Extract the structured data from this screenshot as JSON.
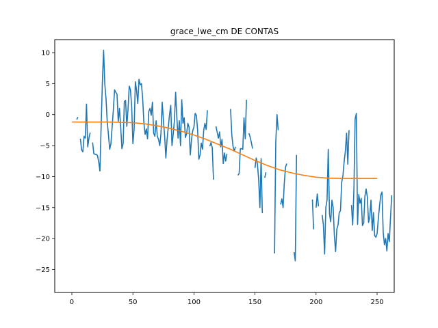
{
  "chart_data": {
    "type": "line",
    "title": "grace_lwe_cm DE CONTAS",
    "xlabel": "",
    "ylabel": "",
    "xlim": [
      -14,
      264
    ],
    "ylim": [
      -28.7,
      12.1
    ],
    "x_ticks": [
      0,
      50,
      100,
      150,
      200,
      250
    ],
    "y_ticks": [
      10,
      5,
      0,
      -5,
      -10,
      -15,
      -20,
      -25
    ],
    "grid": false,
    "legend": "none",
    "series": [
      {
        "color": "#1f77b4",
        "values": [
          [
            4,
            -0.8
          ],
          [
            5,
            -0.4
          ],
          null,
          [
            7,
            -3.9
          ],
          [
            8,
            -5.7
          ],
          [
            9,
            -6.0
          ],
          [
            10,
            -3.5
          ],
          [
            11,
            -3.8
          ],
          [
            12,
            1.7
          ],
          [
            13,
            -5.2
          ],
          [
            14,
            -3.8
          ],
          [
            15,
            -2.9
          ],
          null,
          [
            17,
            -4.5
          ],
          [
            18,
            -6.3
          ],
          [
            19,
            -6.4
          ],
          [
            20,
            -6.4
          ],
          [
            21,
            -6.6
          ],
          [
            22,
            -7.6
          ],
          [
            23,
            -9.1
          ],
          [
            24,
            -1.8
          ],
          [
            25,
            5.2
          ],
          [
            26,
            10.4
          ],
          [
            27,
            4.9
          ],
          [
            28,
            2.5
          ],
          [
            29,
            -1.2
          ],
          [
            30,
            -3.3
          ],
          [
            31,
            -5.6
          ],
          [
            32,
            -4.7
          ],
          [
            33,
            -2.0
          ],
          [
            34,
            0.8
          ],
          [
            35,
            4.0
          ],
          [
            36,
            3.6
          ],
          [
            37,
            3.3
          ],
          [
            38,
            -1.1
          ],
          [
            39,
            1.0
          ],
          [
            40,
            -2.0
          ],
          [
            41,
            -5.5
          ],
          [
            42,
            -4.7
          ],
          [
            43,
            2.1
          ],
          [
            44,
            2.3
          ],
          [
            45,
            -1.9
          ],
          [
            46,
            0.8
          ],
          [
            47,
            4.6
          ],
          [
            48,
            4.0
          ],
          [
            49,
            1.3
          ],
          [
            50,
            -4.7
          ],
          [
            51,
            -2.4
          ],
          [
            52,
            5.3
          ],
          [
            53,
            3.9
          ],
          [
            54,
            1.8
          ],
          [
            55,
            5.7
          ],
          [
            56,
            4.8
          ],
          [
            57,
            5.0
          ],
          [
            58,
            2.6
          ],
          [
            59,
            -1.3
          ],
          [
            60,
            -3.2
          ],
          [
            61,
            -2.3
          ],
          [
            62,
            -3.9
          ],
          [
            63,
            0.5
          ],
          [
            64,
            1.0
          ],
          [
            65,
            -0.1
          ],
          [
            66,
            2.0
          ],
          [
            67,
            -3.0
          ],
          [
            68,
            -3.5
          ],
          [
            69,
            -1.0
          ],
          [
            70,
            -3.5
          ],
          [
            71,
            -4.0
          ],
          [
            72,
            -5.0
          ],
          [
            73,
            -3.0
          ],
          [
            74,
            2.0
          ],
          [
            75,
            -1.0
          ],
          [
            76,
            -3.5
          ],
          [
            77,
            -7.0
          ],
          [
            78,
            -4.0
          ],
          [
            79,
            -2.0
          ],
          [
            80,
            0.0
          ],
          [
            81,
            1.5
          ],
          [
            82,
            -5.0
          ],
          [
            83,
            -3.2
          ],
          [
            84,
            -1.0
          ],
          [
            85,
            3.6
          ],
          [
            86,
            -0.5
          ],
          [
            87,
            -3.8
          ],
          [
            88,
            -1.0
          ],
          [
            89,
            -5.0
          ],
          [
            90,
            2.4
          ],
          [
            91,
            -1.4
          ],
          [
            92,
            -0.5
          ],
          [
            93,
            -3.7
          ],
          [
            94,
            -3.1
          ],
          [
            95,
            -1.4
          ],
          [
            96,
            -2.0
          ],
          [
            97,
            -6.5
          ],
          [
            98,
            -4.0
          ],
          [
            99,
            -2.6
          ],
          [
            100,
            -2.0
          ],
          [
            101,
            0.2
          ],
          [
            102,
            -0.1
          ],
          [
            103,
            -2.5
          ],
          [
            104,
            -7.2
          ],
          [
            105,
            -6.5
          ],
          [
            106,
            -4.6
          ],
          [
            107,
            -5.6
          ],
          [
            108,
            -2.5
          ],
          [
            109,
            -1.4
          ],
          [
            110,
            -2.4
          ],
          [
            111,
            0.7
          ],
          null,
          [
            113,
            -5.1
          ],
          [
            114,
            -4.5
          ],
          [
            115,
            -5.4
          ],
          [
            116,
            -10.5
          ],
          null,
          [
            118,
            -1.9
          ],
          [
            119,
            -2.8
          ],
          [
            120,
            -3.8
          ],
          [
            121,
            -2.8
          ],
          [
            122,
            -5.2
          ],
          [
            123,
            -4.0
          ],
          [
            124,
            -7.9
          ],
          [
            125,
            -6.2
          ],
          [
            126,
            -7.5
          ],
          [
            127,
            -6.3
          ],
          null,
          [
            130,
            0.9
          ],
          [
            131,
            -3.3
          ],
          [
            132,
            -5.1
          ],
          [
            133,
            -5.9
          ],
          [
            134,
            -5.2
          ],
          null,
          [
            136,
            -9.8
          ],
          [
            137,
            -9.5
          ],
          [
            138,
            -5.5
          ],
          [
            139,
            -5.5
          ],
          [
            140,
            -5.6
          ],
          [
            141,
            -0.5
          ],
          [
            142,
            -3.9
          ],
          [
            143,
            2.4
          ],
          null,
          [
            145,
            -3.0
          ],
          [
            146,
            -3.6
          ],
          [
            147,
            -4.5
          ],
          [
            148,
            -5.5
          ],
          null,
          [
            150,
            -8.6
          ],
          [
            151,
            -7.0
          ],
          [
            152,
            -8.0
          ],
          [
            153,
            -10.5
          ],
          [
            154,
            -15.0
          ],
          [
            155,
            -7.1
          ],
          [
            156,
            -15.9
          ],
          null,
          [
            158,
            -10.2
          ],
          [
            159,
            -9.3
          ],
          null,
          [
            166,
            -22.4
          ],
          [
            167,
            -4.5
          ],
          [
            168,
            0.0
          ],
          [
            169,
            -2.5
          ],
          null,
          [
            171,
            -14.5
          ],
          [
            172,
            -13.6
          ],
          [
            173,
            -15.0
          ],
          [
            174,
            -11.0
          ],
          [
            175,
            -8.5
          ],
          [
            176,
            -7.9
          ],
          null,
          [
            182,
            -22.2
          ],
          [
            183,
            -23.6
          ],
          [
            184,
            -6.5
          ],
          null,
          [
            197,
            -13.7
          ],
          [
            198,
            -18.5
          ],
          null,
          [
            200,
            -15.0
          ],
          [
            201,
            -12.8
          ],
          [
            202,
            -14.8
          ],
          null,
          [
            205,
            -16.2
          ],
          [
            206,
            -17.8
          ],
          [
            207,
            -22.5
          ],
          [
            208,
            -15.0
          ],
          [
            209,
            -13.8
          ],
          [
            210,
            -5.6
          ],
          [
            211,
            -16.0
          ],
          [
            212,
            -17.3
          ],
          [
            213,
            -13.8
          ],
          [
            214,
            -15.0
          ],
          [
            215,
            -19.5
          ],
          [
            216,
            -22.1
          ],
          [
            217,
            -18.5
          ],
          [
            218,
            -17.8
          ],
          [
            219,
            -15.8
          ],
          [
            220,
            -15.5
          ],
          [
            221,
            -10.9
          ],
          [
            222,
            -9.9
          ],
          [
            223,
            -7.6
          ],
          [
            224,
            -5.9
          ],
          [
            225,
            -3.0
          ],
          [
            226,
            -8.0
          ],
          [
            227,
            -2.5
          ],
          null,
          [
            229,
            -14.6
          ],
          [
            230,
            -17.8
          ],
          [
            231,
            -12.1
          ],
          [
            232,
            -0.7
          ],
          [
            233,
            0.2
          ],
          [
            234,
            -17.7
          ],
          [
            235,
            -12.9
          ],
          [
            236,
            -14.3
          ],
          [
            237,
            -13.5
          ],
          [
            238,
            -17.9
          ],
          [
            239,
            -17.5
          ],
          [
            240,
            -13.2
          ],
          [
            241,
            -12.0
          ],
          [
            242,
            -13.3
          ],
          [
            243,
            -17.4
          ],
          [
            244,
            -16.5
          ],
          [
            245,
            -13.8
          ],
          [
            246,
            -18.7
          ],
          [
            247,
            -15.8
          ],
          [
            248,
            -19.5
          ],
          [
            249,
            -19.8
          ],
          [
            250,
            -19.2
          ],
          [
            251,
            -16.8
          ],
          [
            252,
            -14.7
          ],
          [
            253,
            -13.0
          ],
          [
            254,
            -12.5
          ],
          [
            255,
            -19.0
          ],
          [
            256,
            -21.0
          ],
          [
            257,
            -20.0
          ],
          [
            258,
            -22.0
          ],
          [
            259,
            -19.2
          ],
          [
            260,
            -20.5
          ],
          [
            261,
            -16.5
          ],
          [
            262,
            -13.0
          ]
        ]
      },
      {
        "color": "#ff7f0e",
        "values": [
          [
            0,
            -1.2
          ],
          [
            10,
            -1.2
          ],
          [
            20,
            -1.2
          ],
          [
            30,
            -1.2
          ],
          [
            40,
            -1.25
          ],
          [
            50,
            -1.3
          ],
          [
            60,
            -1.5
          ],
          [
            70,
            -1.8
          ],
          [
            80,
            -2.2
          ],
          [
            90,
            -2.7
          ],
          [
            100,
            -3.3
          ],
          [
            110,
            -4.0
          ],
          [
            120,
            -4.8
          ],
          [
            130,
            -5.6
          ],
          [
            140,
            -6.5
          ],
          [
            150,
            -7.4
          ],
          [
            160,
            -8.2
          ],
          [
            170,
            -8.9
          ],
          [
            180,
            -9.4
          ],
          [
            190,
            -9.8
          ],
          [
            200,
            -10.1
          ],
          [
            210,
            -10.25
          ],
          [
            220,
            -10.3
          ],
          [
            230,
            -10.3
          ],
          [
            240,
            -10.3
          ],
          [
            250,
            -10.3
          ]
        ]
      }
    ]
  }
}
